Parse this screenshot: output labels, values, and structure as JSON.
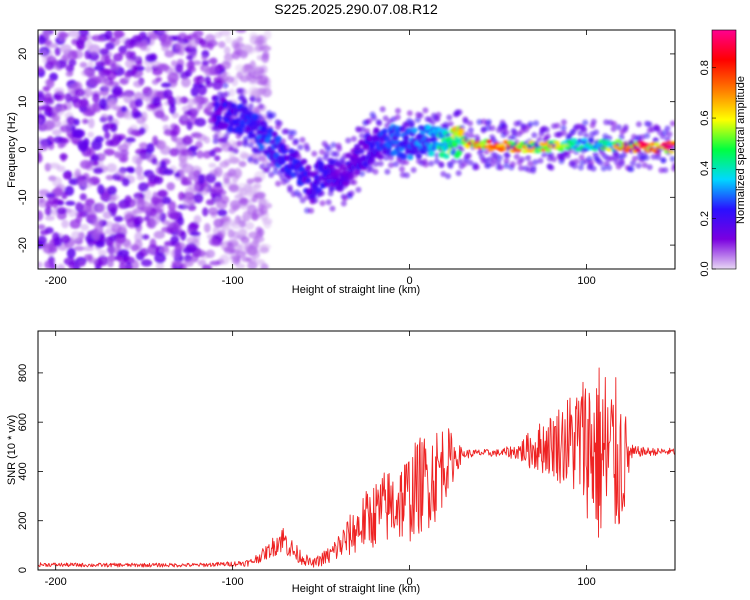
{
  "chart_data": [
    {
      "type": "heatmap",
      "title": "S225.2025.290.07.08.R12",
      "xlabel": "Height of straight line (km)",
      "ylabel": "Frequency (Hz)",
      "xlim": [
        -210,
        150
      ],
      "ylim": [
        -25,
        25
      ],
      "xticks": [
        "-200",
        "-100",
        "0",
        "100"
      ],
      "xtick_values": [
        -200,
        -100,
        0,
        100
      ],
      "yticks": [
        "-20",
        "-10",
        "0",
        "10",
        "20"
      ],
      "ytick_values": [
        -20,
        -10,
        0,
        10,
        20
      ],
      "colorbar": {
        "label": "Normalized spectral amplitude",
        "range": [
          0,
          0.95
        ],
        "ticks": [
          "0.0",
          "0.2",
          "0.4",
          "0.6",
          "0.8"
        ],
        "tick_values": [
          0,
          0.2,
          0.4,
          0.6,
          0.8
        ],
        "colors": [
          "#e8d8f4",
          "#7a00e0",
          "#2a10ff",
          "#00d8ff",
          "#00ff40",
          "#ffff00",
          "#ff7a00",
          "#ff0000",
          "#ff0090"
        ]
      },
      "noise_region": {
        "x_range": [
          -210,
          -95
        ],
        "y_range": [
          -25,
          25
        ],
        "typical_amplitude": 0.1
      },
      "signal_track": {
        "x": [
          -110,
          -100,
          -90,
          -80,
          -70,
          -60,
          -55,
          -50,
          -40,
          -30,
          -20,
          -10,
          0,
          10,
          20,
          30,
          40,
          50,
          60,
          70,
          80,
          90,
          100,
          110,
          120,
          130,
          140,
          150
        ],
        "frequency": [
          8,
          7,
          5,
          2,
          -2,
          -5,
          -8,
          -5,
          -6,
          -2,
          1,
          2,
          1,
          2,
          1,
          1.5,
          1,
          0.8,
          0.7,
          0.5,
          0.5,
          1,
          1,
          1,
          0.8,
          0.5,
          0.5,
          0.5
        ],
        "amplitude": [
          0.2,
          0.25,
          0.25,
          0.3,
          0.25,
          0.25,
          0.2,
          0.25,
          0.2,
          0.2,
          0.25,
          0.3,
          0.3,
          0.35,
          0.55,
          0.7,
          0.8,
          0.85,
          0.8,
          0.75,
          0.7,
          0.5,
          0.4,
          0.5,
          0.75,
          0.85,
          0.95,
          0.9
        ]
      }
    },
    {
      "type": "line",
      "xlabel": "Height of straight line (km)",
      "ylabel": "SNR (10 * v/v)",
      "xlim": [
        -210,
        150
      ],
      "ylim": [
        0,
        970
      ],
      "xticks": [
        "-200",
        "-100",
        "0",
        "100"
      ],
      "xtick_values": [
        -200,
        -100,
        0,
        100
      ],
      "yticks": [
        "0",
        "200",
        "400",
        "600",
        "800"
      ],
      "ytick_values": [
        0,
        200,
        400,
        600,
        800
      ],
      "line_color": "#ee2222",
      "series": [
        {
          "name": "SNR",
          "x": [
            -210,
            -180,
            -150,
            -120,
            -100,
            -90,
            -80,
            -72,
            -65,
            -55,
            -45,
            -35,
            -25,
            -15,
            -5,
            0,
            5,
            15,
            20,
            30,
            40,
            50,
            60,
            70,
            80,
            90,
            100,
            105,
            110,
            115,
            120,
            125,
            130,
            140,
            150
          ],
          "mean": [
            22,
            20,
            20,
            20,
            25,
            30,
            75,
            130,
            70,
            25,
            60,
            130,
            200,
            250,
            280,
            300,
            340,
            390,
            440,
            470,
            475,
            475,
            480,
            490,
            510,
            520,
            520,
            480,
            460,
            450,
            440,
            470,
            480,
            480,
            480
          ],
          "spread": [
            8,
            8,
            8,
            8,
            10,
            15,
            30,
            60,
            40,
            15,
            40,
            80,
            120,
            150,
            170,
            190,
            200,
            200,
            160,
            20,
            15,
            15,
            30,
            90,
            130,
            200,
            300,
            380,
            400,
            350,
            300,
            40,
            20,
            15,
            15
          ]
        }
      ]
    }
  ]
}
